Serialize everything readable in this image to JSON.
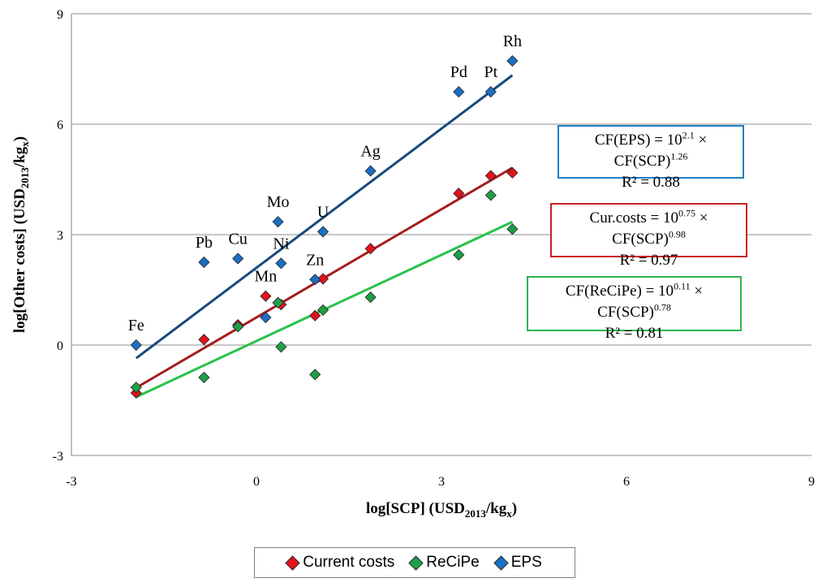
{
  "chart_data": {
    "type": "scatter",
    "xlabel_main": "log[SCP] (USD",
    "xlabel_sub": "2013",
    "xlabel_tail": "/kg",
    "xlabel_sub2": "x",
    "xlabel_close": ")",
    "ylabel_main": "log[Other costs] (USD",
    "ylabel_sub": "2013",
    "ylabel_tail": "/kg",
    "ylabel_sub2": "x",
    "ylabel_close": ")",
    "xlim": [
      -3,
      9
    ],
    "ylim": [
      -3,
      9
    ],
    "xticks": [
      -3,
      0,
      3,
      6,
      9
    ],
    "yticks": [
      -3,
      0,
      3,
      6,
      9
    ],
    "grid": "horizontal",
    "legend_position": "bottom",
    "series": [
      {
        "name": "Current costs",
        "color": "#e3121b",
        "points": [
          [
            -1.95,
            -1.3
          ],
          [
            -0.85,
            0.15
          ],
          [
            -0.3,
            0.55
          ],
          [
            0.15,
            1.33
          ],
          [
            0.35,
            1.15
          ],
          [
            0.4,
            1.1
          ],
          [
            0.95,
            0.8
          ],
          [
            1.08,
            1.8
          ],
          [
            1.85,
            2.62
          ],
          [
            3.28,
            4.12
          ],
          [
            3.8,
            4.6
          ],
          [
            4.15,
            4.68
          ]
        ],
        "fit": {
          "slope": 0.98,
          "intercept": 0.75,
          "color": "#a51c1c"
        }
      },
      {
        "name": "ReCiPe",
        "color": "#1f9e48",
        "points": [
          [
            -1.95,
            -1.15
          ],
          [
            -0.85,
            -0.88
          ],
          [
            -0.3,
            0.5
          ],
          [
            0.35,
            1.15
          ],
          [
            0.4,
            -0.05
          ],
          [
            0.95,
            -0.8
          ],
          [
            1.08,
            0.95
          ],
          [
            1.85,
            1.3
          ],
          [
            3.28,
            2.45
          ],
          [
            3.8,
            4.07
          ],
          [
            4.15,
            3.15
          ]
        ],
        "fit": {
          "slope": 0.78,
          "intercept": 0.11,
          "color": "#27c24a"
        }
      },
      {
        "name": "EPS",
        "color": "#1a6fc5",
        "points": [
          [
            -1.95,
            0.0
          ],
          [
            -0.85,
            2.25
          ],
          [
            -0.3,
            2.35
          ],
          [
            0.15,
            0.75
          ],
          [
            0.35,
            3.35
          ],
          [
            0.4,
            2.22
          ],
          [
            0.95,
            1.78
          ],
          [
            1.08,
            3.08
          ],
          [
            1.85,
            4.73
          ],
          [
            3.28,
            6.88
          ],
          [
            3.8,
            6.88
          ],
          [
            4.15,
            7.72
          ]
        ],
        "fit": {
          "slope": 1.26,
          "intercept": 2.1,
          "color": "#174a7c"
        }
      }
    ],
    "annotations": [
      {
        "text": "Fe",
        "x": -1.95,
        "y": 0.0
      },
      {
        "text": "Pb",
        "x": -0.85,
        "y": 2.25
      },
      {
        "text": "Cu",
        "x": -0.3,
        "y": 2.35
      },
      {
        "text": "Mn",
        "x": 0.15,
        "y": 1.33
      },
      {
        "text": "Mo",
        "x": 0.35,
        "y": 3.35
      },
      {
        "text": "Ni",
        "x": 0.4,
        "y": 2.22
      },
      {
        "text": "Zn",
        "x": 0.95,
        "y": 1.78
      },
      {
        "text": "U",
        "x": 1.08,
        "y": 3.08
      },
      {
        "text": "Ag",
        "x": 1.85,
        "y": 4.73
      },
      {
        "text": "Pd",
        "x": 3.28,
        "y": 6.88
      },
      {
        "text": "Pt",
        "x": 3.8,
        "y": 6.88
      },
      {
        "text": "Rh",
        "x": 4.15,
        "y": 7.72
      }
    ],
    "equations": {
      "eps": {
        "lhs": "CF(EPS) = 10",
        "exp1": "2.1",
        "mid": " × CF(SCP)",
        "exp2": "1.26",
        "r2": "R² = 0.88",
        "color": "#1f7ec6"
      },
      "cur": {
        "lhs": "Cur.costs = 10",
        "exp1": "0.75",
        "mid": " × CF(SCP)",
        "exp2": "0.98",
        "r2": "R² = 0.97",
        "color": "#c9211e"
      },
      "recipe": {
        "lhs": "CF(ReCiPe) = 10",
        "exp1": "0.11",
        "mid": " × CF(SCP)",
        "exp2": "0.78",
        "r2": "R² = 0.81",
        "color": "#2bb350"
      }
    }
  },
  "legend": {
    "items": [
      {
        "label": "Current costs",
        "color": "#e3121b"
      },
      {
        "label": "ReCiPe",
        "color": "#1f9e48"
      },
      {
        "label": "EPS",
        "color": "#1a6fc5"
      }
    ]
  }
}
